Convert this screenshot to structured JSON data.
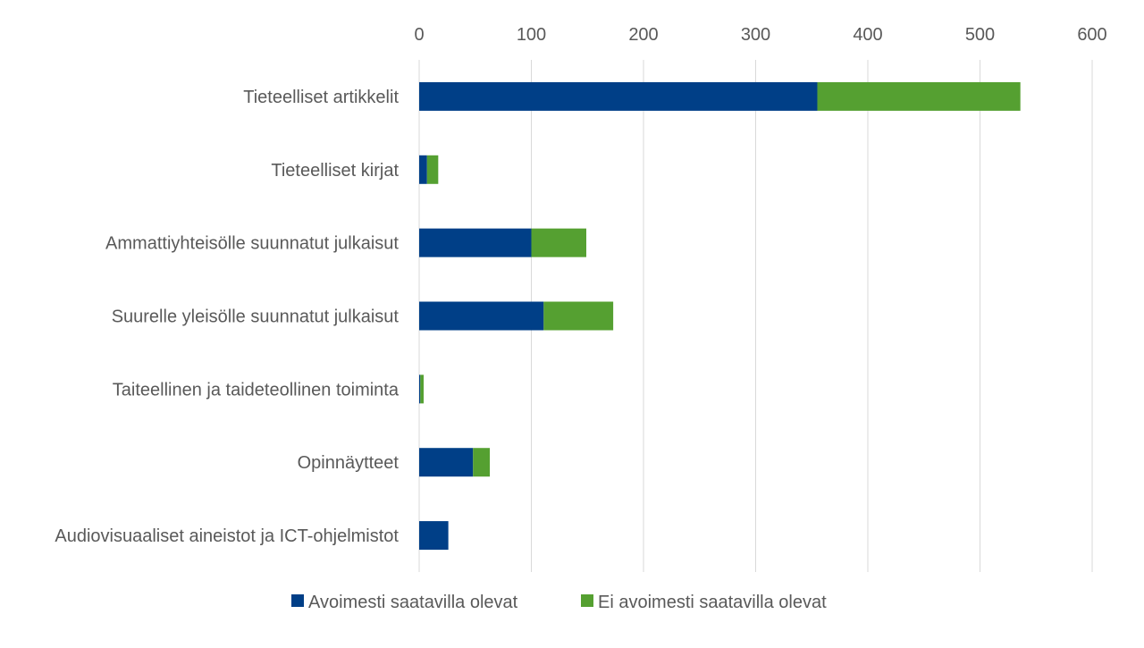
{
  "chart_data": {
    "type": "bar",
    "orientation": "horizontal",
    "stacked": true,
    "categories": [
      "Tieteelliset artikkelit",
      "Tieteelliset kirjat",
      "Ammattiyhteisölle suunnatut julkaisut",
      "Suurelle yleisölle suunnatut julkaisut",
      "Taiteellinen ja taideteollinen toiminta",
      "Opinnäytteet",
      "Audiovisuaaliset aineistot ja ICT-ohjelmistot"
    ],
    "series": [
      {
        "name": "Avoimesti saatavilla olevat",
        "color": "#003f87",
        "values": [
          355,
          7,
          100,
          111,
          1,
          48,
          26
        ]
      },
      {
        "name": "Ei avoimesti saatavilla olevat",
        "color": "#55a031",
        "values": [
          181,
          10,
          49,
          62,
          3,
          15,
          0
        ]
      }
    ],
    "xlim": [
      0,
      600
    ],
    "xticks": [
      "0",
      "100",
      "200",
      "300",
      "400",
      "500",
      "600"
    ],
    "x_axis_position": "top",
    "grid": true,
    "legend_position": "bottom"
  }
}
